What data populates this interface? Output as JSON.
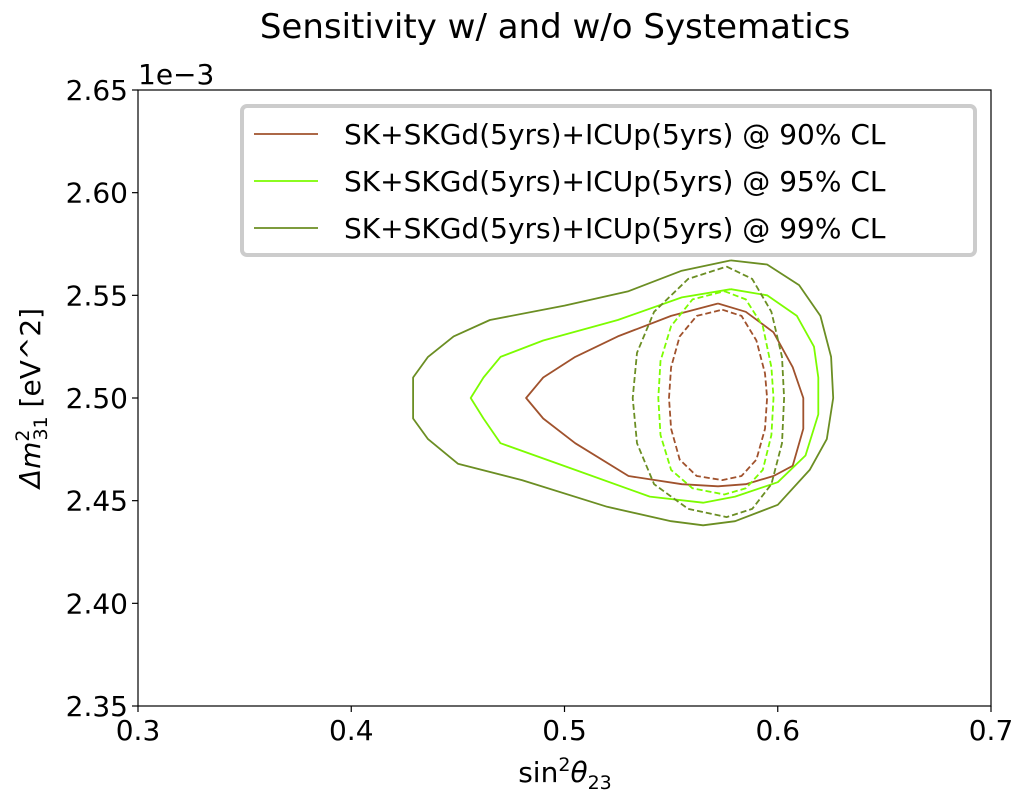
{
  "chart_data": {
    "type": "line",
    "title": "Sensitivity w/ and w/o Systematics",
    "xlabel": {
      "base": "sin",
      "sup": "2",
      "symbol": "θ",
      "sub": "23"
    },
    "ylabel": {
      "symbol": "Δm",
      "sup": "2",
      "sub": "31",
      "unit": " [eV^2]"
    },
    "y_offset_label": "1e−3",
    "xlim": [
      0.3,
      0.7
    ],
    "ylim": [
      2.35,
      2.65
    ],
    "y_scale_factor": 0.001,
    "x_ticks": [
      {
        "value": 0.3,
        "label": "0.3"
      },
      {
        "value": 0.4,
        "label": "0.4"
      },
      {
        "value": 0.5,
        "label": "0.5"
      },
      {
        "value": 0.6,
        "label": "0.6"
      },
      {
        "value": 0.7,
        "label": "0.7"
      }
    ],
    "y_ticks": [
      {
        "value": 2.35,
        "label": "2.35"
      },
      {
        "value": 2.4,
        "label": "2.40"
      },
      {
        "value": 2.45,
        "label": "2.45"
      },
      {
        "value": 2.5,
        "label": "2.50"
      },
      {
        "value": 2.55,
        "label": "2.55"
      },
      {
        "value": 2.6,
        "label": "2.60"
      },
      {
        "value": 2.65,
        "label": "2.65"
      }
    ],
    "grid": false,
    "legend_placement": "top-right",
    "series": [
      {
        "name": "SK+SKGd(5yrs)+ICUp(5yrs) @ 90% CL",
        "color": "#a0522d",
        "style": "solid",
        "x": [
          0.572,
          0.585,
          0.598,
          0.607,
          0.612,
          0.612,
          0.607,
          0.598,
          0.585,
          0.572,
          0.555,
          0.53,
          0.505,
          0.49,
          0.482,
          0.49,
          0.505,
          0.525,
          0.55,
          0.572
        ],
        "y": [
          2.546,
          2.542,
          2.532,
          2.515,
          2.5,
          2.485,
          2.467,
          2.462,
          2.458,
          2.457,
          2.458,
          2.462,
          2.478,
          2.49,
          2.5,
          2.51,
          2.52,
          2.53,
          2.54,
          2.546
        ]
      },
      {
        "name": "SK+SKGd(5yrs)+ICUp(5yrs) @ 95% CL",
        "color": "#7cfc00",
        "style": "solid",
        "x": [
          0.578,
          0.595,
          0.609,
          0.617,
          0.619,
          0.619,
          0.613,
          0.6,
          0.58,
          0.565,
          0.54,
          0.505,
          0.47,
          0.462,
          0.456,
          0.462,
          0.47,
          0.49,
          0.525,
          0.555,
          0.578
        ],
        "y": [
          2.553,
          2.55,
          2.54,
          2.525,
          2.51,
          2.492,
          2.472,
          2.459,
          2.452,
          2.449,
          2.452,
          2.465,
          2.478,
          2.49,
          2.5,
          2.51,
          2.52,
          2.528,
          2.538,
          2.549,
          2.553
        ]
      },
      {
        "name": "SK+SKGd(5yrs)+ICUp(5yrs) @ 99% CL",
        "color": "#6b8e23",
        "style": "solid",
        "x": [
          0.578,
          0.595,
          0.61,
          0.62,
          0.625,
          0.626,
          0.623,
          0.615,
          0.6,
          0.58,
          0.565,
          0.55,
          0.52,
          0.48,
          0.45,
          0.436,
          0.429,
          0.429,
          0.436,
          0.448,
          0.465,
          0.5,
          0.53,
          0.555,
          0.578
        ],
        "y": [
          2.567,
          2.565,
          2.555,
          2.54,
          2.52,
          2.5,
          2.48,
          2.465,
          2.448,
          2.44,
          2.438,
          2.44,
          2.447,
          2.46,
          2.468,
          2.48,
          2.49,
          2.51,
          2.52,
          2.53,
          2.538,
          2.545,
          2.552,
          2.562,
          2.567
        ]
      },
      {
        "name": "",
        "color": "#a0522d",
        "style": "dashed",
        "x": [
          0.574,
          0.583,
          0.59,
          0.594,
          0.595,
          0.594,
          0.59,
          0.583,
          0.574,
          0.562,
          0.554,
          0.55,
          0.549,
          0.55,
          0.554,
          0.562,
          0.574
        ],
        "y": [
          2.543,
          2.54,
          2.528,
          2.512,
          2.5,
          2.485,
          2.47,
          2.462,
          2.46,
          2.462,
          2.47,
          2.485,
          2.5,
          2.515,
          2.53,
          2.54,
          2.543
        ]
      },
      {
        "name": "",
        "color": "#7cfc00",
        "style": "dashed",
        "x": [
          0.575,
          0.585,
          0.593,
          0.597,
          0.598,
          0.597,
          0.593,
          0.585,
          0.575,
          0.56,
          0.55,
          0.545,
          0.544,
          0.545,
          0.55,
          0.56,
          0.575
        ],
        "y": [
          2.552,
          2.548,
          2.535,
          2.515,
          2.5,
          2.482,
          2.465,
          2.456,
          2.453,
          2.456,
          2.465,
          2.482,
          2.5,
          2.518,
          2.535,
          2.548,
          2.552
        ]
      },
      {
        "name": "",
        "color": "#6b8e23",
        "style": "dashed",
        "x": [
          0.576,
          0.588,
          0.597,
          0.602,
          0.603,
          0.602,
          0.597,
          0.588,
          0.576,
          0.558,
          0.542,
          0.534,
          0.532,
          0.534,
          0.542,
          0.558,
          0.576
        ],
        "y": [
          2.564,
          2.558,
          2.542,
          2.52,
          2.5,
          2.478,
          2.458,
          2.446,
          2.442,
          2.446,
          2.458,
          2.478,
          2.5,
          2.522,
          2.542,
          2.558,
          2.564
        ]
      }
    ]
  }
}
